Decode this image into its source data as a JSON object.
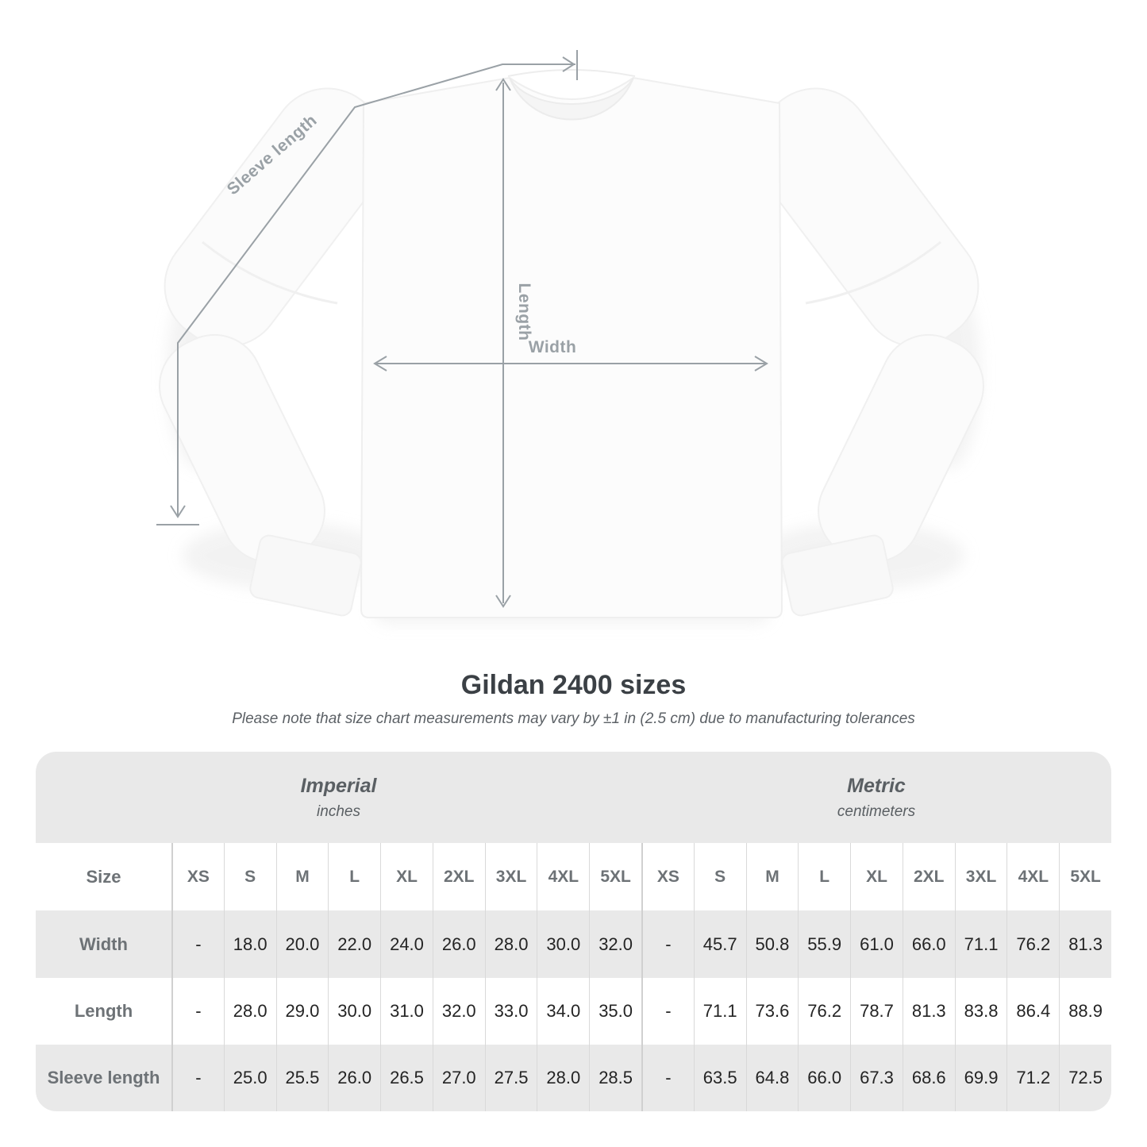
{
  "colors": {
    "annotation": "#9aa1a6",
    "table_band": "#e9e9e9",
    "divider": "#d9d9d9",
    "divider_strong": "#d0d0d0",
    "label_text": "#6d7276",
    "value_text": "#242424",
    "title_text": "#3b4045",
    "subtitle_text": "#5c6166"
  },
  "diagram": {
    "sleeve_length_label": "Sleeve length",
    "length_label": "Length",
    "width_label": "Width"
  },
  "heading": {
    "title": "Gildan 2400 sizes",
    "subtitle": "Please note that size chart measurements may vary by ±1 in (2.5 cm) due to manufacturing tolerances"
  },
  "table": {
    "size_header": "Size",
    "sections": [
      {
        "label": "Imperial",
        "unit": "inches"
      },
      {
        "label": "Metric",
        "unit": "centimeters"
      }
    ],
    "sizes": [
      "XS",
      "S",
      "M",
      "L",
      "XL",
      "2XL",
      "3XL",
      "4XL",
      "5XL"
    ],
    "rows": [
      {
        "label": "Width",
        "imperial": [
          "-",
          "18.0",
          "20.0",
          "22.0",
          "24.0",
          "26.0",
          "28.0",
          "30.0",
          "32.0"
        ],
        "metric": [
          "-",
          "45.7",
          "50.8",
          "55.9",
          "61.0",
          "66.0",
          "71.1",
          "76.2",
          "81.3"
        ]
      },
      {
        "label": "Length",
        "imperial": [
          "-",
          "28.0",
          "29.0",
          "30.0",
          "31.0",
          "32.0",
          "33.0",
          "34.0",
          "35.0"
        ],
        "metric": [
          "-",
          "71.1",
          "73.6",
          "76.2",
          "78.7",
          "81.3",
          "83.8",
          "86.4",
          "88.9"
        ]
      },
      {
        "label": "Sleeve length",
        "imperial": [
          "-",
          "25.0",
          "25.5",
          "26.0",
          "26.5",
          "27.0",
          "27.5",
          "28.0",
          "28.5"
        ],
        "metric": [
          "-",
          "63.5",
          "64.8",
          "66.0",
          "67.3",
          "68.6",
          "69.9",
          "71.2",
          "72.5"
        ]
      }
    ]
  },
  "chart_data": {
    "type": "table",
    "title": "Gildan 2400 sizes",
    "note": "Measurements may vary by ±1 in (2.5 cm) due to manufacturing tolerances",
    "columns": [
      "XS",
      "S",
      "M",
      "L",
      "XL",
      "2XL",
      "3XL",
      "4XL",
      "5XL"
    ],
    "rows": [
      {
        "measure": "Width",
        "unit_in": [
          "-",
          18.0,
          20.0,
          22.0,
          24.0,
          26.0,
          28.0,
          30.0,
          32.0
        ],
        "unit_cm": [
          "-",
          45.7,
          50.8,
          55.9,
          61.0,
          66.0,
          71.1,
          76.2,
          81.3
        ]
      },
      {
        "measure": "Length",
        "unit_in": [
          "-",
          28.0,
          29.0,
          30.0,
          31.0,
          32.0,
          33.0,
          34.0,
          35.0
        ],
        "unit_cm": [
          "-",
          71.1,
          73.6,
          76.2,
          78.7,
          81.3,
          83.8,
          86.4,
          88.9
        ]
      },
      {
        "measure": "Sleeve length",
        "unit_in": [
          "-",
          25.0,
          25.5,
          26.0,
          26.5,
          27.0,
          27.5,
          28.0,
          28.5
        ],
        "unit_cm": [
          "-",
          63.5,
          64.8,
          66.0,
          67.3,
          68.6,
          69.9,
          71.2,
          72.5
        ]
      }
    ]
  }
}
